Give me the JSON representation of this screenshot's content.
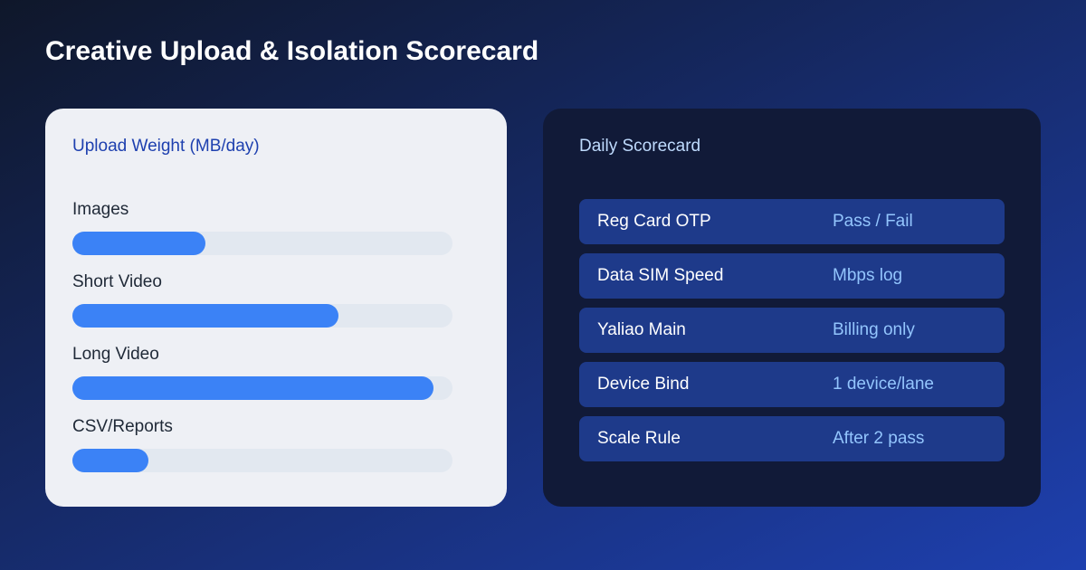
{
  "title": "Creative Upload & Isolation Scorecard",
  "chart_data": {
    "type": "bar",
    "orientation": "horizontal",
    "title": "Upload Weight (MB/day)",
    "categories": [
      "Images",
      "Short Video",
      "Long Video",
      "CSV/Reports"
    ],
    "values": [
      35,
      70,
      95,
      20
    ],
    "xlim": [
      0,
      100
    ],
    "color": "#3b82f6"
  },
  "scorecard": {
    "title": "Daily Scorecard",
    "rows": [
      [
        "Reg Card OTP",
        "Pass / Fail"
      ],
      [
        "Data SIM Speed",
        "Mbps log"
      ],
      [
        "Yaliao Main",
        "Billing only"
      ],
      [
        "Device Bind",
        "1 device/lane"
      ],
      [
        "Scale Rule",
        "After 2 pass"
      ]
    ]
  }
}
